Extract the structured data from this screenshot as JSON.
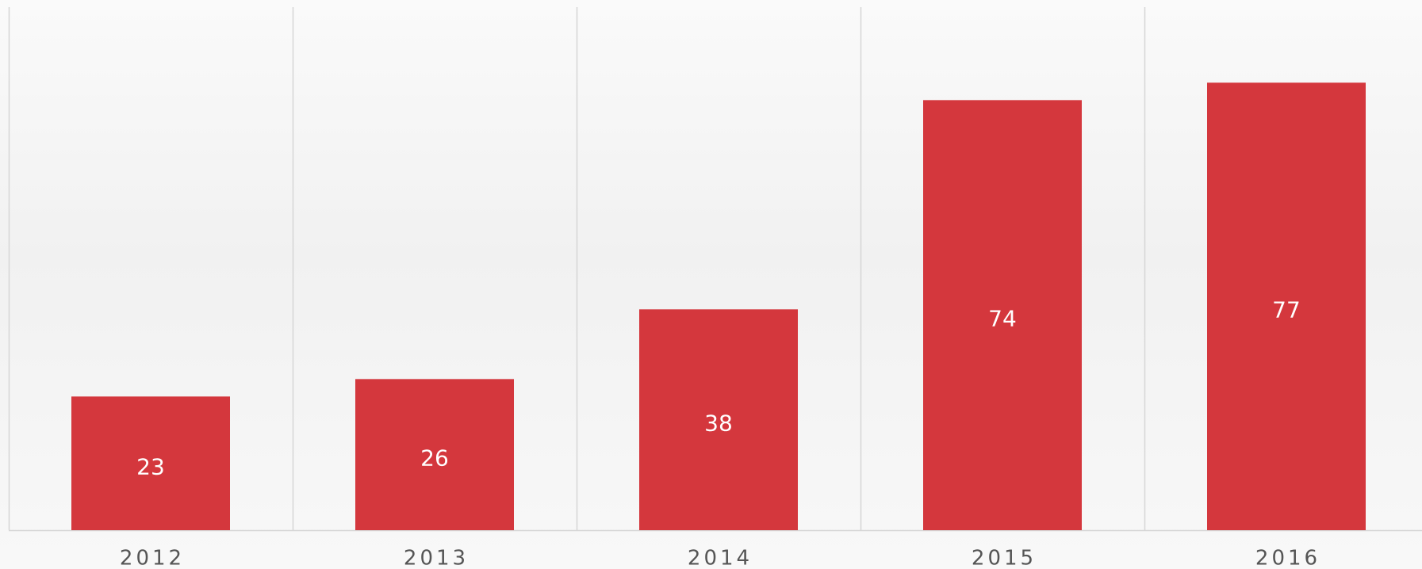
{
  "chart_data": {
    "type": "bar",
    "categories": [
      "2012",
      "2013",
      "2014",
      "2015",
      "2016"
    ],
    "values": [
      23,
      26,
      38,
      74,
      77
    ],
    "color": "#d4373d",
    "ylim": [
      0,
      90
    ]
  }
}
